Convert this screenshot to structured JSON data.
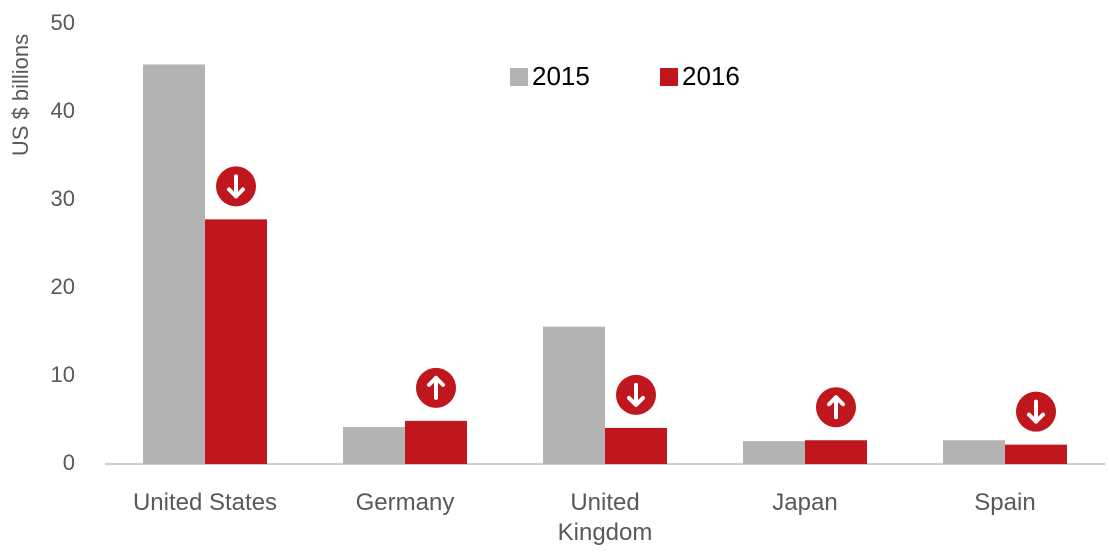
{
  "chart_data": {
    "type": "bar",
    "y_label": "US $ billions",
    "categories": [
      "United States",
      "Germany",
      "United Kingdom",
      "Japan",
      "Spain"
    ],
    "series": [
      {
        "name": "2015",
        "color": "#b3b3b3",
        "values": [
          45.4,
          4.2,
          15.6,
          2.6,
          2.7
        ]
      },
      {
        "name": "2016",
        "color": "#c0161d",
        "values": [
          27.8,
          4.9,
          4.1,
          2.7,
          2.2
        ]
      }
    ],
    "ylim": [
      0,
      50
    ],
    "yticks": [
      0,
      10,
      20,
      30,
      40,
      50
    ],
    "grid": false,
    "legend": "top"
  }
}
